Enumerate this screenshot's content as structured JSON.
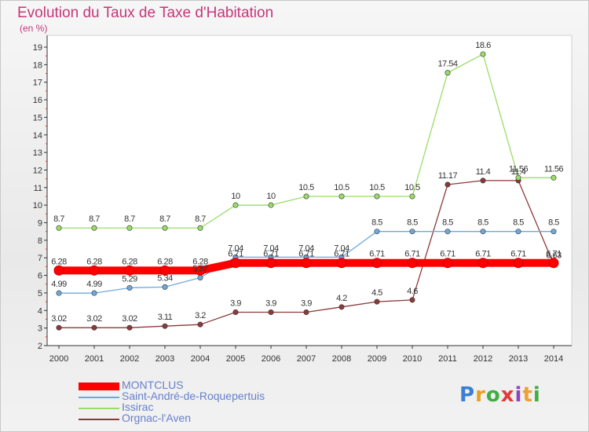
{
  "title": "Evolution du Taux de Taxe d'Habitation",
  "subtitle": "(en %)",
  "chart_data": {
    "type": "line",
    "x": [
      "2000",
      "2001",
      "2002",
      "2003",
      "2004",
      "2005",
      "2006",
      "2007",
      "2008",
      "2009",
      "2010",
      "2011",
      "2012",
      "2013",
      "2014"
    ],
    "ylim": [
      2,
      19
    ],
    "yticks": [
      "2",
      "3",
      "4",
      "5",
      "6",
      "7",
      "8",
      "9",
      "10",
      "11",
      "12",
      "13",
      "14",
      "15",
      "16",
      "17",
      "18",
      "19"
    ],
    "grid": false,
    "legend_position": "bottom-left",
    "series": [
      {
        "name": "MONTCLUS",
        "color": "#ff0000",
        "values": [
          6.28,
          6.28,
          6.28,
          6.28,
          6.28,
          6.71,
          6.71,
          6.71,
          6.71,
          6.71,
          6.71,
          6.71,
          6.71,
          6.71,
          6.71
        ],
        "labels": [
          "6.28",
          "6.28",
          "6.28",
          "6.28",
          "6.28",
          "6.71",
          "6.71",
          "6.71",
          "6.71",
          "6.71",
          "6.71",
          "6.71",
          "6.71",
          "6.71",
          "6.71"
        ]
      },
      {
        "name": "Saint-André-de-Roquepertuis",
        "color": "#6fa8dc",
        "values": [
          4.99,
          4.99,
          5.29,
          5.34,
          5.87,
          7.04,
          7.04,
          7.04,
          7.04,
          8.5,
          8.5,
          8.5,
          8.5,
          8.5,
          8.5
        ],
        "labels": [
          "4.99",
          "4.99",
          "5.29",
          "5.34",
          "5.87",
          "7.04",
          "7.04",
          "7.04",
          "7.04",
          "8.5",
          "8.5",
          "8.5",
          "8.5",
          "8.5",
          "8.5"
        ]
      },
      {
        "name": "Issirac",
        "color": "#99dd66",
        "values": [
          8.7,
          8.7,
          8.7,
          8.7,
          8.7,
          10,
          10,
          10.5,
          10.5,
          10.5,
          10.5,
          17.54,
          18.6,
          11.56,
          11.56
        ],
        "labels": [
          "8.7",
          "8.7",
          "8.7",
          "8.7",
          "8.7",
          "10",
          "10",
          "10.5",
          "10.5",
          "10.5",
          "10.5",
          "17.54",
          "18.6",
          "11.56",
          "11.56"
        ]
      },
      {
        "name": "Orgnac-l'Aven",
        "color": "#8b3a3a",
        "values": [
          3.02,
          3.02,
          3.02,
          3.11,
          3.2,
          3.9,
          3.9,
          3.9,
          4.2,
          4.5,
          4.6,
          11.17,
          11.4,
          11.4,
          6.63
        ],
        "labels": [
          "3.02",
          "3.02",
          "3.02",
          "3.11",
          "3.2",
          "3.9",
          "3.9",
          "3.9",
          "4.2",
          "4.5",
          "4.6",
          "11.17",
          "11.4",
          "11.4",
          "6.63"
        ]
      }
    ]
  },
  "logo": {
    "text": "Proxiti",
    "colors": [
      "#3a7fd6",
      "#e8a020",
      "#3fae3f",
      "#e23a3a",
      "#8e44c0",
      "#f0a030",
      "#3fae3f"
    ]
  }
}
